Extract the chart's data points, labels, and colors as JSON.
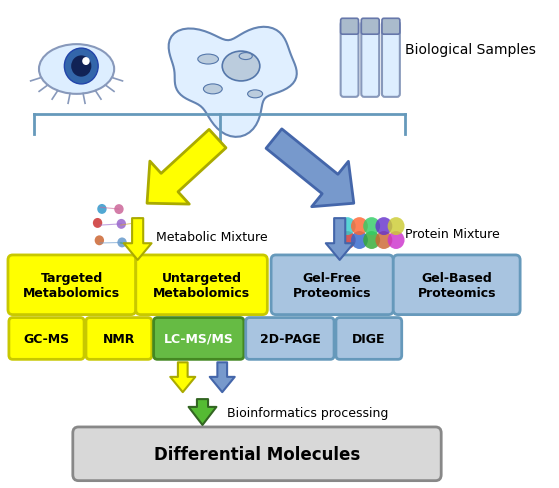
{
  "background_color": "#ffffff",
  "biological_samples_label": "Biological Samples",
  "metabolic_mixture_label": "Metabolic Mixture",
  "protein_mixture_label": "Protein Mixture",
  "bioinformatics_label": "Bioinformatics processing",
  "differential_label": "Differential Molecules",
  "yellow_color": "#ffff00",
  "yellow_border": "#c8c800",
  "blue_color": "#a8c4e0",
  "blue_border": "#6699bb",
  "green_color": "#66bb44",
  "green_border": "#448822",
  "bracket_color": "#6699bb",
  "arrow_yellow_face": "#ffff00",
  "arrow_yellow_edge": "#aaaa00",
  "arrow_blue_face": "#7799cc",
  "arrow_blue_edge": "#4466aa",
  "arrow_green_face": "#55bb33",
  "arrow_green_edge": "#336622",
  "gray_box_face": "#d8d8d8",
  "gray_box_edge": "#888888",
  "layout": {
    "fig_w": 5.59,
    "fig_h": 4.89,
    "dpi": 100
  }
}
